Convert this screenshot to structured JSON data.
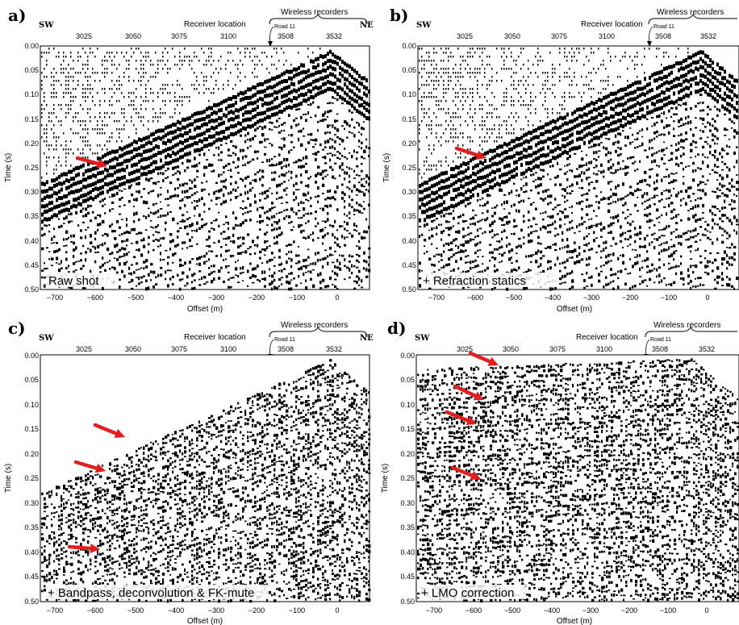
{
  "figure": {
    "colors": {
      "trace": "#000000",
      "arrow": "#e02020",
      "background": "#ffffff"
    },
    "common": {
      "sw": "SW",
      "ne": "NE",
      "receiver_location": "Receiver location",
      "wireless_recorders": "Wireless recorders",
      "road": "Road 11",
      "receiver_ticks": [
        "3025",
        "3050",
        "3075",
        "3100",
        "3508",
        "3532"
      ],
      "time_label": "Time (s)",
      "offset_label": "Offset (m)",
      "time_ticks": [
        "0.00",
        "0.05",
        "0.10",
        "0.15",
        "0.20",
        "0.25",
        "0.30",
        "0.35",
        "0.40",
        "0.45",
        "0.50"
      ],
      "offset_ticks": [
        "−700",
        "−600",
        "−500",
        "−400",
        "−300",
        "−200",
        "−100",
        "0"
      ]
    },
    "panels": [
      {
        "label": "a)",
        "caption": "Raw shot",
        "ne_visible": true,
        "arrows": 1
      },
      {
        "label": "b)",
        "caption": "+ Refraction statics",
        "ne_visible": false,
        "arrows": 1
      },
      {
        "label": "c)",
        "caption": "+ Bandpass, deconvolution & FK-mute",
        "ne_visible": true,
        "arrows": 3
      },
      {
        "label": "d)",
        "caption": "+ LMO correction",
        "ne_visible": false,
        "arrows": 4
      }
    ]
  }
}
